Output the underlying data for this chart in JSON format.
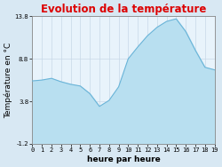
{
  "title": "Evolution de la température",
  "xlabel": "heure par heure",
  "ylabel": "Température en °C",
  "hours": [
    0,
    1,
    2,
    3,
    4,
    5,
    6,
    7,
    8,
    9,
    10,
    11,
    12,
    13,
    14,
    15,
    16,
    17,
    18,
    19
  ],
  "temperatures": [
    6.2,
    6.3,
    6.5,
    6.1,
    5.8,
    5.6,
    4.7,
    3.2,
    3.9,
    5.5,
    8.8,
    10.2,
    11.5,
    12.5,
    13.2,
    13.5,
    12.0,
    9.8,
    7.8,
    7.5
  ],
  "ylim": [
    -1.2,
    13.8
  ],
  "yticks": [
    -1.2,
    3.8,
    8.8,
    13.8
  ],
  "ytick_labels": [
    "-1.2",
    "3.8",
    "8.8",
    "13.8"
  ],
  "fill_color": "#b8dff0",
  "line_color": "#6ab4d8",
  "title_color": "#dd0000",
  "bg_color": "#d8e8f3",
  "plot_bg_color": "#e8f3fb",
  "grid_color": "#c8d8e8",
  "tick_label_fontsize": 5.0,
  "axis_label_fontsize": 6.5,
  "title_fontsize": 8.5
}
